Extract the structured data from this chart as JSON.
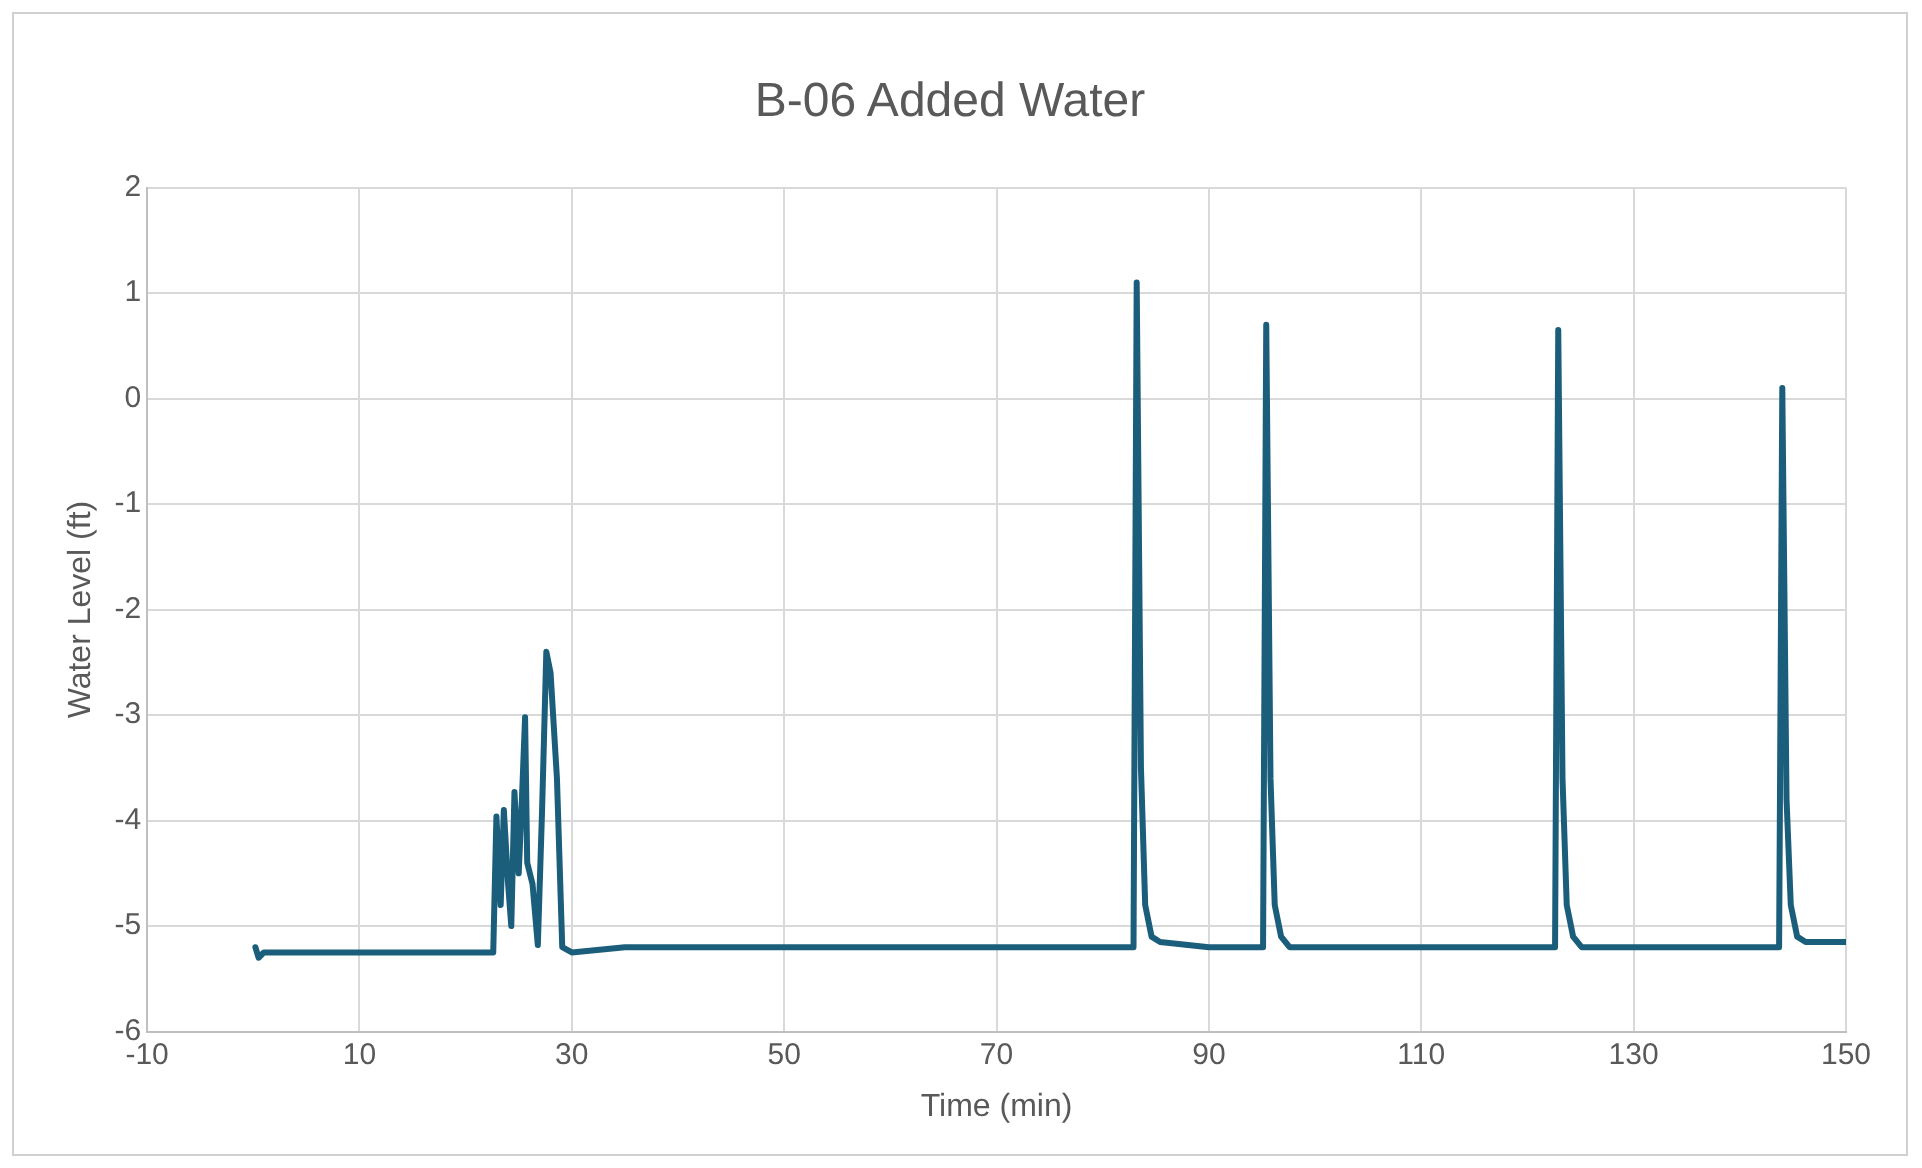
{
  "chart_data": {
    "type": "line",
    "title": "B-06 Added Water",
    "xlabel": "Time (min)",
    "ylabel": "Water Level (ft)",
    "xlim": [
      -10,
      150
    ],
    "xticks": [
      -10,
      10,
      30,
      50,
      70,
      90,
      110,
      130,
      150
    ],
    "ylim": [
      -6,
      2
    ],
    "yticks": [
      -6,
      -5,
      -4,
      -3,
      -2,
      -1,
      0,
      1,
      2
    ],
    "grid": true,
    "legend": false,
    "marker": "none",
    "line_style": "solid",
    "series": [
      {
        "color": "#1b5e7b",
        "x": [
          0.2,
          0.5,
          1,
          5,
          10,
          15,
          20,
          22.6,
          22.9,
          23.3,
          23.6,
          24,
          24.3,
          24.6,
          25,
          25.3,
          25.6,
          25.8,
          26.3,
          26.8,
          27.2,
          27.6,
          28,
          28.6,
          29.1,
          30,
          35,
          40,
          50,
          60,
          70,
          80,
          82.9,
          83.2,
          83.6,
          84,
          84.6,
          85.4,
          90,
          95.1,
          95.4,
          95.8,
          96.2,
          96.8,
          97.6,
          100,
          110,
          120,
          122.6,
          122.9,
          123.3,
          123.7,
          124.3,
          125.1,
          130,
          140,
          143.7,
          144,
          144.4,
          144.8,
          145.4,
          146.2,
          150
        ],
        "values": [
          -5.2,
          -5.3,
          -5.25,
          -5.25,
          -5.25,
          -5.25,
          -5.25,
          -5.25,
          -3.96,
          -4.8,
          -3.9,
          -4.6,
          -5,
          -3.73,
          -4.5,
          -3.8,
          -3.02,
          -4.4,
          -4.6,
          -5.18,
          -3.9,
          -2.4,
          -2.6,
          -3.6,
          -5.2,
          -5.25,
          -5.2,
          -5.2,
          -5.2,
          -5.2,
          -5.2,
          -5.2,
          -5.2,
          1.1,
          -3.5,
          -4.8,
          -5.1,
          -5.15,
          -5.2,
          -5.2,
          0.7,
          -3.6,
          -4.8,
          -5.1,
          -5.2,
          -5.2,
          -5.2,
          -5.2,
          -5.2,
          0.65,
          -3.6,
          -4.8,
          -5.1,
          -5.2,
          -5.2,
          -5.2,
          -5.2,
          0.1,
          -3.8,
          -4.8,
          -5.1,
          -5.15,
          -5.15
        ]
      }
    ]
  }
}
